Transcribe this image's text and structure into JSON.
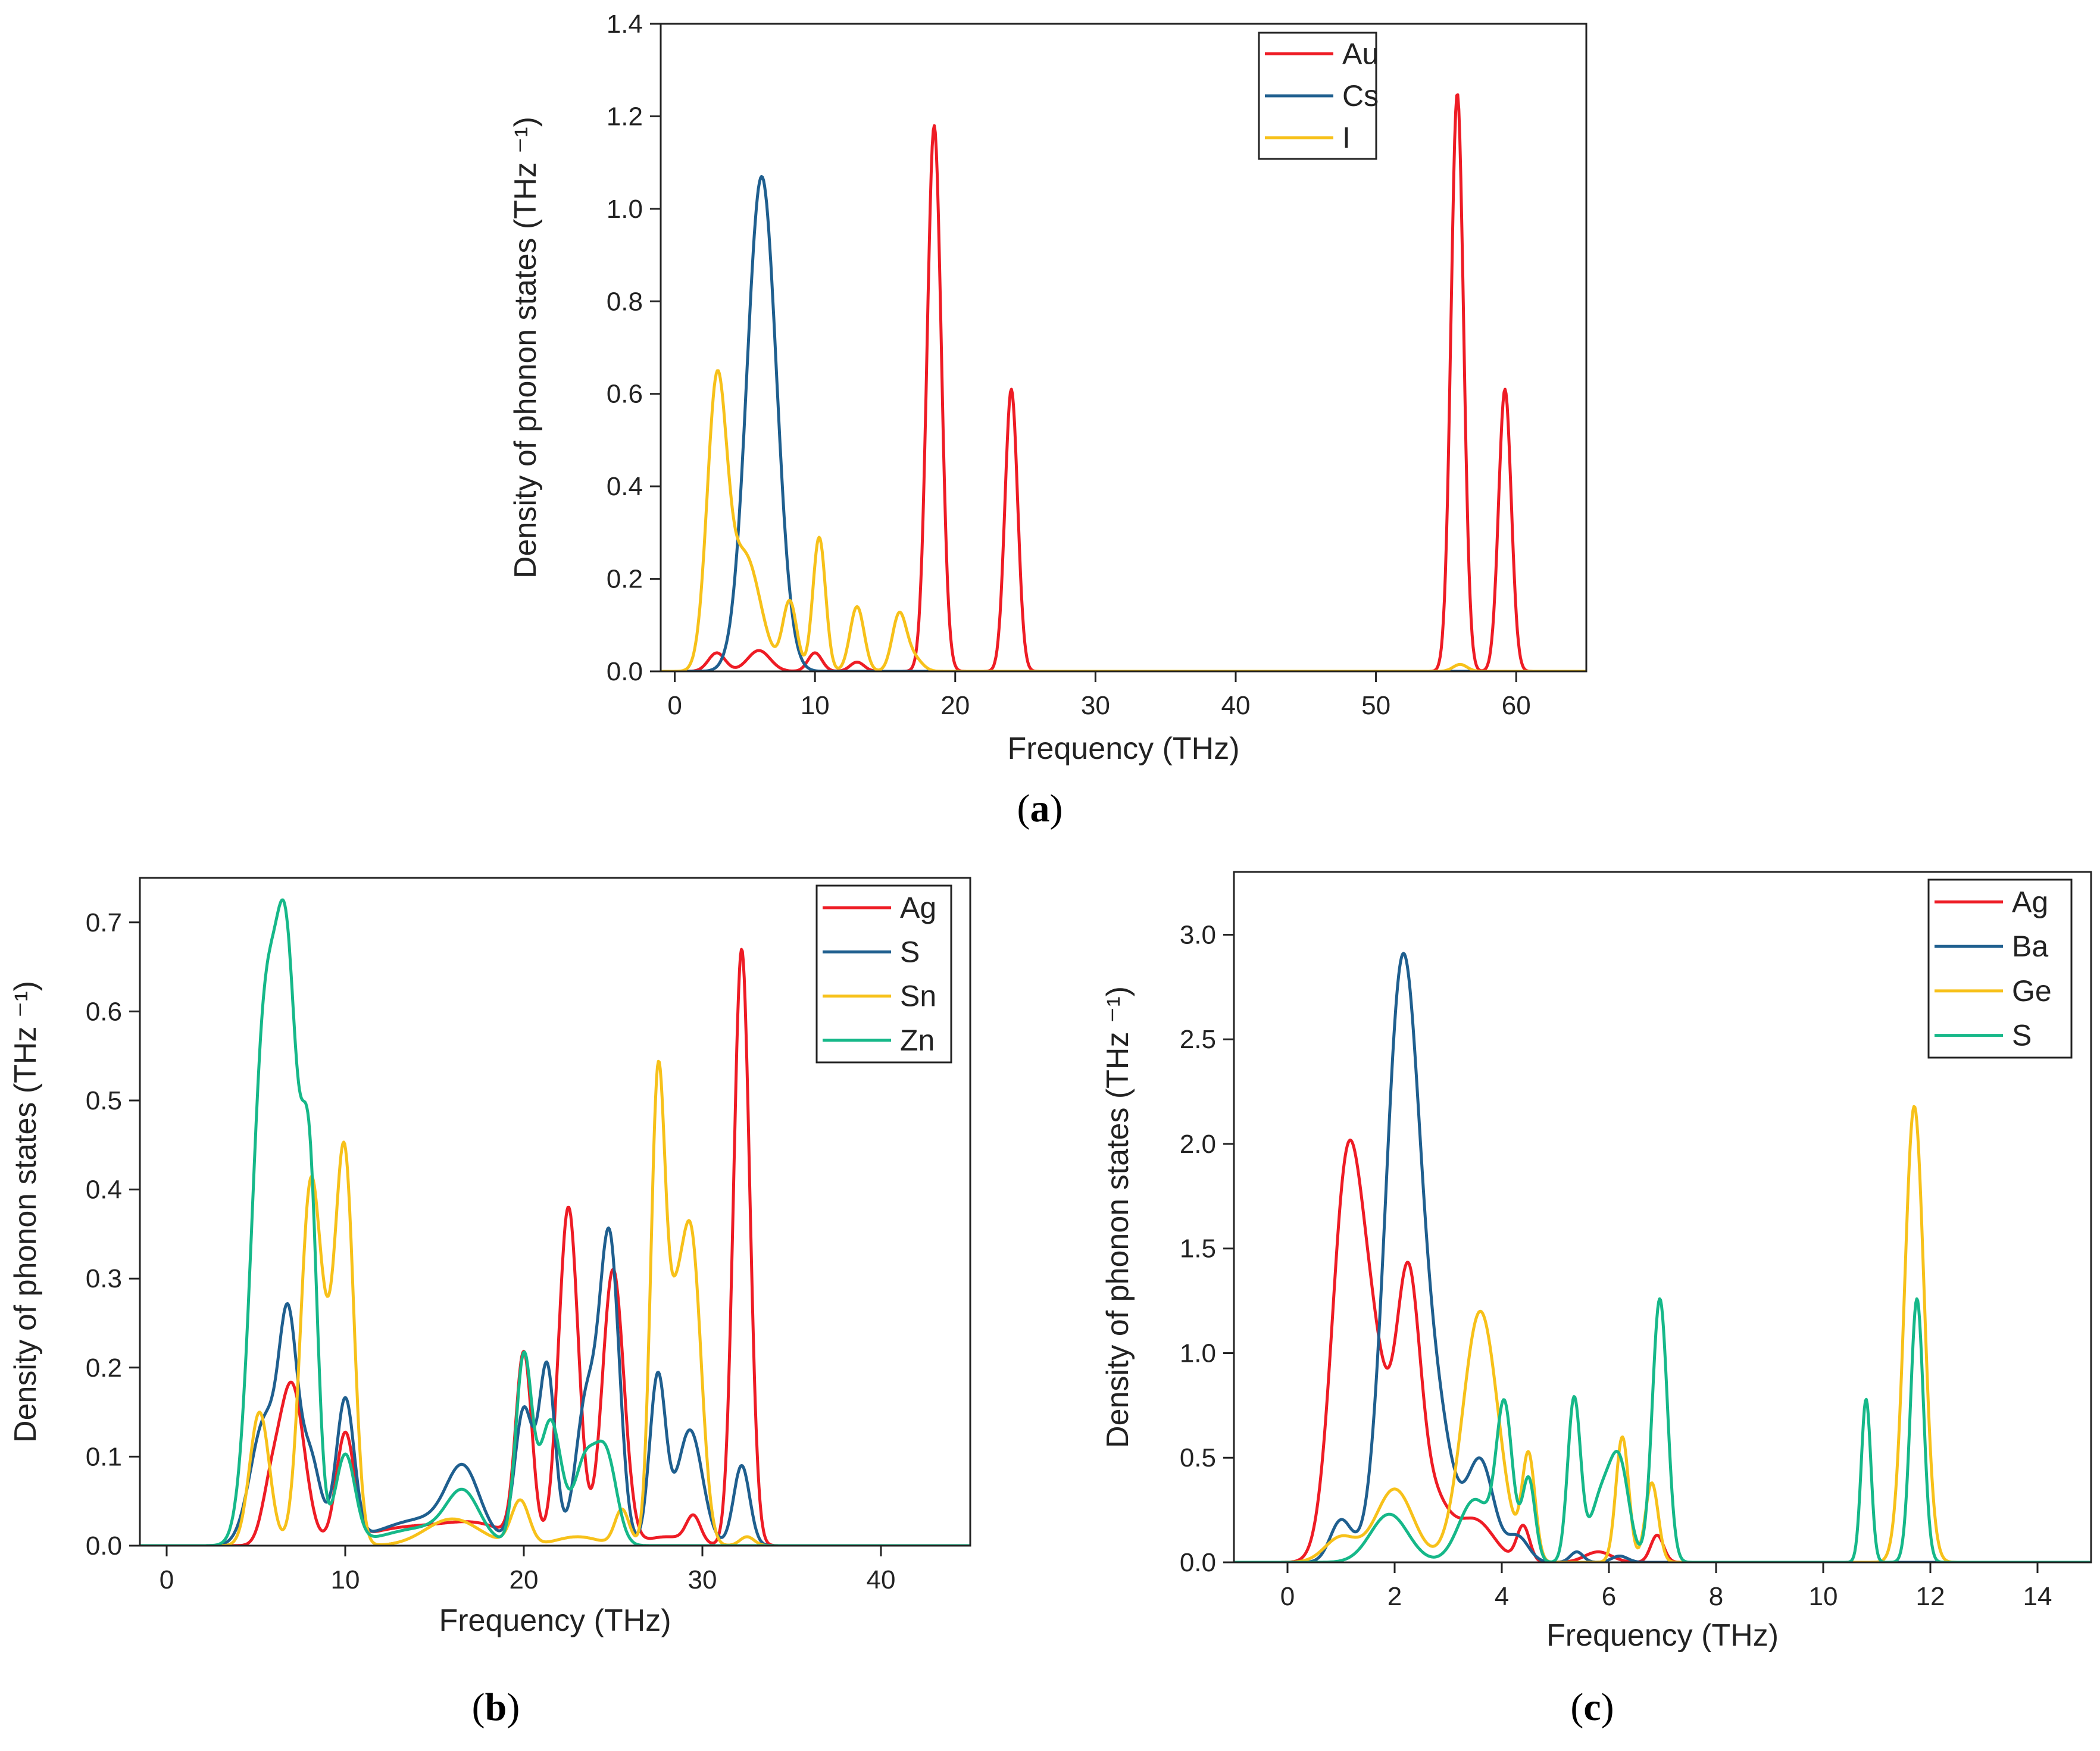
{
  "colors": {
    "red": "#ee1c25",
    "blue": "#1f5f8f",
    "yellow": "#f7c11a",
    "green": "#16b889"
  },
  "chart_data": [
    {
      "type": "line",
      "panel": "(a)",
      "panel_letter": "a",
      "xlabel": "Frequency (THz)",
      "ylabel": "Density of phonon states (THz ⁻¹)",
      "xlim": [
        -1,
        65
      ],
      "ylim": [
        0,
        1.4
      ],
      "xticks": [
        0,
        10,
        20,
        30,
        40,
        50,
        60
      ],
      "xtick_labels": [
        "0",
        "10",
        "20",
        "30",
        "40",
        "50",
        "60"
      ],
      "yticks": [
        0,
        0.2,
        0.4,
        0.6,
        0.8,
        1.0,
        1.2,
        1.4
      ],
      "ytick_labels": [
        "0.0",
        "0.2",
        "0.4",
        "0.6",
        "0.8",
        "1.0",
        "1.2",
        "1.4"
      ],
      "legend_position": "top-right",
      "series": [
        {
          "name": "Au",
          "color": "#ee1c25",
          "peaks": [
            [
              3,
              0.04,
              0.6
            ],
            [
              6,
              0.045,
              0.8
            ],
            [
              10,
              0.04,
              0.5
            ],
            [
              13,
              0.02,
              0.5
            ],
            [
              18.5,
              1.18,
              0.5
            ],
            [
              24,
              0.61,
              0.45
            ],
            [
              55.8,
              1.25,
              0.45
            ],
            [
              59.2,
              0.61,
              0.45
            ]
          ]
        },
        {
          "name": "Cs",
          "color": "#1f5f8f",
          "peaks": [
            [
              6.2,
              1.07,
              1.05
            ]
          ]
        },
        {
          "name": "I",
          "color": "#f7c11a",
          "peaks": [
            [
              3,
              0.6,
              0.7
            ],
            [
              5,
              0.25,
              1.1
            ],
            [
              8.2,
              0.15,
              0.5
            ],
            [
              10.3,
              0.29,
              0.45
            ],
            [
              13,
              0.14,
              0.5
            ],
            [
              16,
              0.12,
              0.5
            ],
            [
              17,
              0.03,
              0.6
            ],
            [
              56,
              0.015,
              0.5
            ]
          ]
        }
      ]
    },
    {
      "type": "line",
      "panel": "(b)",
      "panel_letter": "b",
      "xlabel": "Frequency (THz)",
      "ylabel": "Density of phonon states (THz ⁻¹)",
      "xlim": [
        -1.5,
        45
      ],
      "ylim": [
        0,
        0.75
      ],
      "xticks": [
        0,
        10,
        20,
        30,
        40
      ],
      "xtick_labels": [
        "0",
        "10",
        "20",
        "30",
        "40"
      ],
      "yticks": [
        0,
        0.1,
        0.2,
        0.3,
        0.4,
        0.5,
        0.6,
        0.7
      ],
      "ytick_labels": [
        "0.0",
        "0.1",
        "0.2",
        "0.3",
        "0.4",
        "0.5",
        "0.6",
        "0.7"
      ],
      "legend_position": "top-right",
      "series": [
        {
          "name": "Ag",
          "color": "#ee1c25",
          "peaks": [
            [
              5.8,
              0.05,
              0.5
            ],
            [
              7,
              0.18,
              0.7
            ],
            [
              10,
              0.12,
              0.5
            ],
            [
              13.5,
              0.02,
              2.5
            ],
            [
              17.5,
              0.02,
              1.8
            ],
            [
              20,
              0.21,
              0.45
            ],
            [
              22.5,
              0.38,
              0.55
            ],
            [
              25,
              0.31,
              0.6
            ],
            [
              28,
              0.01,
              1.2
            ],
            [
              29.5,
              0.03,
              0.4
            ],
            [
              32.2,
              0.67,
              0.45
            ]
          ]
        },
        {
          "name": "S",
          "color": "#1f5f8f",
          "peaks": [
            [
              5.5,
              0.14,
              0.8
            ],
            [
              6.8,
              0.22,
              0.5
            ],
            [
              8,
              0.1,
              0.6
            ],
            [
              10,
              0.16,
              0.5
            ],
            [
              14.5,
              0.03,
              2.5
            ],
            [
              16.6,
              0.07,
              0.9
            ],
            [
              20,
              0.15,
              0.5
            ],
            [
              21.3,
              0.2,
              0.45
            ],
            [
              23.5,
              0.16,
              0.6
            ],
            [
              24.8,
              0.34,
              0.55
            ],
            [
              27.5,
              0.19,
              0.45
            ],
            [
              29.3,
              0.13,
              0.7
            ],
            [
              32.2,
              0.09,
              0.45
            ]
          ]
        },
        {
          "name": "Sn",
          "color": "#f7c11a",
          "peaks": [
            [
              5.2,
              0.15,
              0.55
            ],
            [
              8,
              0.35,
              0.55
            ],
            [
              10,
              0.39,
              0.5
            ],
            [
              9,
              0.16,
              0.7
            ],
            [
              16,
              0.03,
              1.5
            ],
            [
              19.8,
              0.05,
              0.5
            ],
            [
              23,
              0.01,
              1.2
            ],
            [
              25.5,
              0.04,
              0.4
            ],
            [
              27.5,
              0.5,
              0.4
            ],
            [
              29.4,
              0.33,
              0.55
            ],
            [
              28.4,
              0.2,
              0.5
            ],
            [
              32.5,
              0.01,
              0.4
            ]
          ]
        },
        {
          "name": "Zn",
          "color": "#16b889",
          "peaks": [
            [
              5.5,
              0.58,
              0.75
            ],
            [
              6.8,
              0.55,
              0.6
            ],
            [
              8,
              0.39,
              0.45
            ],
            [
              10,
              0.1,
              0.55
            ],
            [
              14.5,
              0.02,
              2.3
            ],
            [
              16.6,
              0.05,
              0.9
            ],
            [
              20,
              0.21,
              0.45
            ],
            [
              21.5,
              0.14,
              0.6
            ],
            [
              23.4,
              0.09,
              0.6
            ],
            [
              24.6,
              0.1,
              0.6
            ]
          ]
        }
      ]
    },
    {
      "type": "line",
      "panel": "(c)",
      "panel_letter": "c",
      "xlabel": "Frequency (THz)",
      "ylabel": "Density of phonon states (THz ⁻¹)",
      "xlim": [
        -1,
        15
      ],
      "ylim": [
        0,
        3.3
      ],
      "xticks": [
        0,
        2,
        4,
        6,
        8,
        10,
        12,
        14
      ],
      "xtick_labels": [
        "0",
        "2",
        "4",
        "6",
        "8",
        "10",
        "12",
        "14"
      ],
      "yticks": [
        0,
        0.5,
        1.0,
        1.5,
        2.0,
        2.5,
        3.0
      ],
      "ytick_labels": [
        "0.0",
        "0.5",
        "1.0",
        "1.5",
        "2.0",
        "2.5",
        "3.0"
      ],
      "legend_position": "top-right",
      "series": [
        {
          "name": "Ag",
          "color": "#ee1c25",
          "peaks": [
            [
              1.1,
              1.75,
              0.28
            ],
            [
              1.6,
              0.9,
              0.3
            ],
            [
              2.25,
              1.25,
              0.22
            ],
            [
              2.7,
              0.3,
              0.3
            ],
            [
              3.5,
              0.2,
              0.35
            ],
            [
              4.4,
              0.17,
              0.12
            ],
            [
              5.8,
              0.05,
              0.25
            ],
            [
              6.9,
              0.13,
              0.12
            ]
          ]
        },
        {
          "name": "Ba",
          "color": "#1f5f8f",
          "peaks": [
            [
              1.0,
              0.2,
              0.2
            ],
            [
              2.15,
              2.85,
              0.32
            ],
            [
              2.8,
              0.6,
              0.3
            ],
            [
              3.6,
              0.48,
              0.25
            ],
            [
              4.3,
              0.12,
              0.2
            ],
            [
              5.4,
              0.05,
              0.12
            ],
            [
              6.2,
              0.03,
              0.15
            ]
          ]
        },
        {
          "name": "Ge",
          "color": "#f7c11a",
          "peaks": [
            [
              1.0,
              0.12,
              0.3
            ],
            [
              2.0,
              0.35,
              0.35
            ],
            [
              3.6,
              1.2,
              0.33
            ],
            [
              4.5,
              0.5,
              0.12
            ],
            [
              6.25,
              0.6,
              0.12
            ],
            [
              6.8,
              0.38,
              0.12
            ],
            [
              11.7,
              2.18,
              0.18
            ]
          ]
        },
        {
          "name": "S",
          "color": "#16b889",
          "peaks": [
            [
              1.9,
              0.23,
              0.35
            ],
            [
              3.5,
              0.3,
              0.3
            ],
            [
              4.05,
              0.72,
              0.15
            ],
            [
              4.5,
              0.4,
              0.12
            ],
            [
              5.35,
              0.78,
              0.12
            ],
            [
              6.2,
              0.45,
              0.18
            ],
            [
              5.85,
              0.3,
              0.2
            ],
            [
              6.95,
              1.26,
              0.14
            ],
            [
              10.8,
              0.78,
              0.09
            ],
            [
              11.75,
              1.26,
              0.12
            ]
          ]
        }
      ]
    }
  ]
}
